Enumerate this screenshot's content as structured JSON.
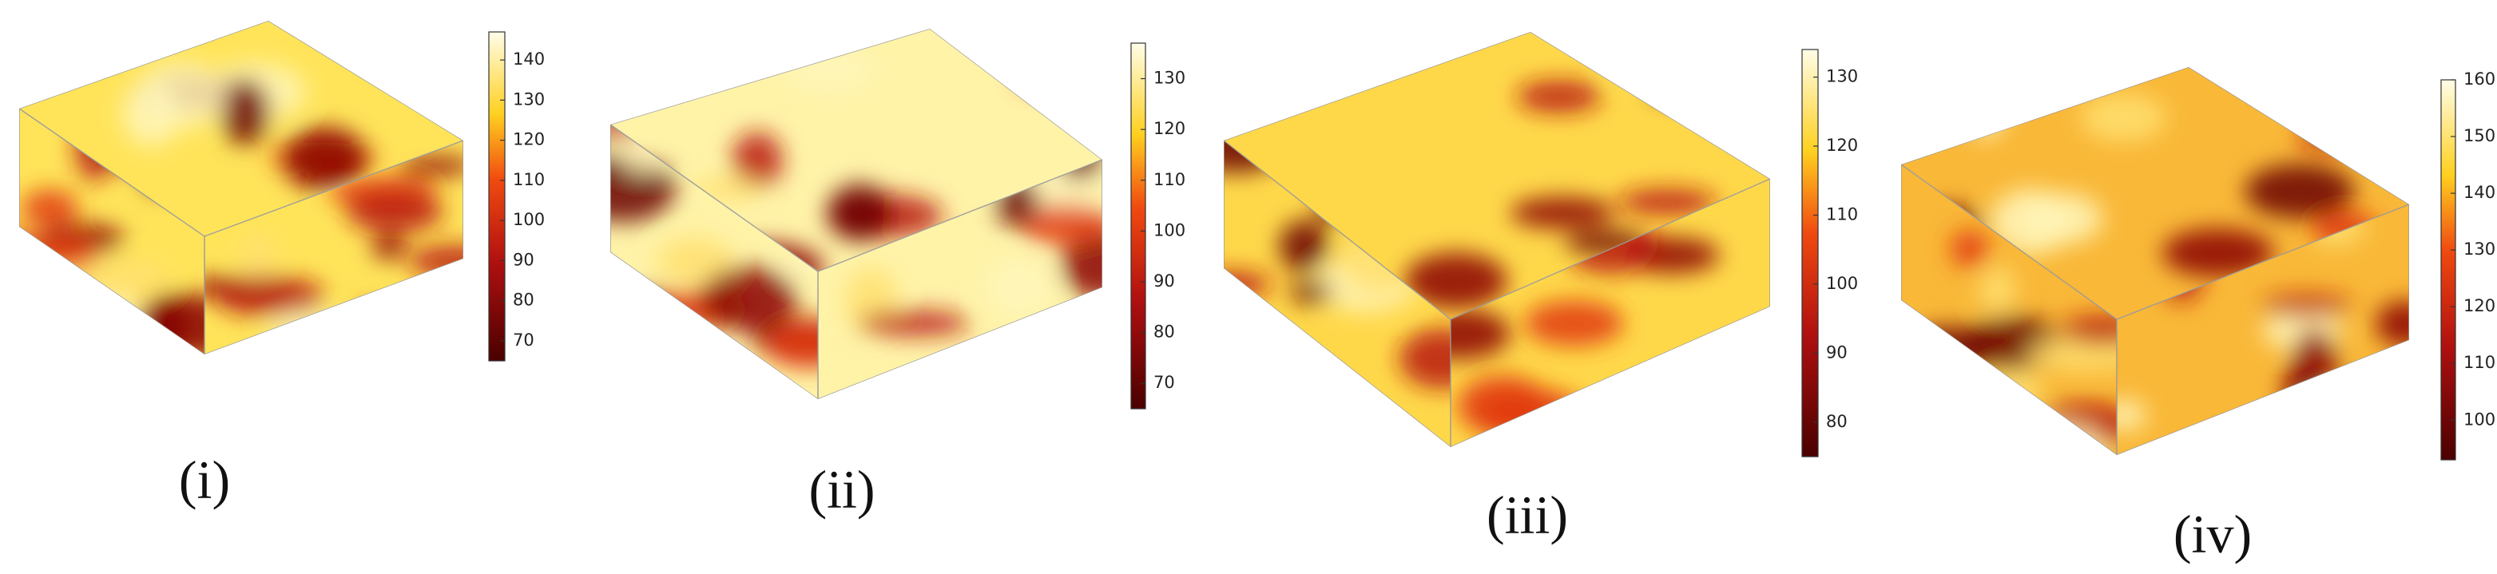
{
  "panels": [
    {
      "label": "(i)",
      "colorbar": {
        "lim": [
          65,
          147
        ],
        "ticks": [
          70,
          80,
          90,
          100,
          110,
          120,
          130,
          140
        ]
      }
    },
    {
      "label": "(ii)",
      "colorbar": {
        "lim": [
          65,
          137
        ],
        "ticks": [
          70,
          80,
          90,
          100,
          110,
          120,
          130
        ]
      }
    },
    {
      "label": "(iii)",
      "colorbar": {
        "lim": [
          75,
          134
        ],
        "ticks": [
          80,
          90,
          100,
          110,
          120,
          130
        ]
      }
    },
    {
      "label": "(iv)",
      "colorbar": {
        "lim": [
          93,
          160
        ],
        "ticks": [
          100,
          110,
          120,
          130,
          140,
          150,
          160
        ]
      }
    }
  ]
}
